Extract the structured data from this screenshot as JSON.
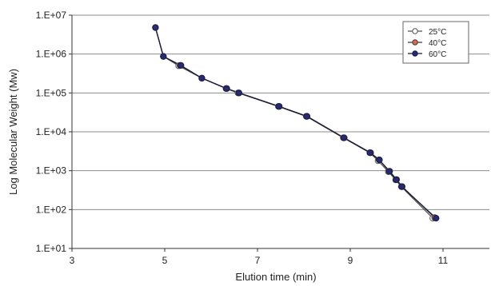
{
  "chart_data": {
    "type": "scatter",
    "title": "",
    "xlabel": "Elution time (min)",
    "ylabel": "Log Molecular Weight (Mw)",
    "x_scale": "linear",
    "y_scale": "log",
    "xlim": [
      3,
      12
    ],
    "ylim": [
      10,
      10000000
    ],
    "xticks": [
      3,
      5,
      7,
      9,
      11
    ],
    "xtick_labels": [
      "3",
      "5",
      "7",
      "9",
      "11"
    ],
    "yticks": [
      10,
      100,
      1000,
      10000,
      100000,
      1000000,
      10000000
    ],
    "ytick_labels": [
      "1.E+01",
      "1.E+02",
      "1.E+03",
      "1.E+04",
      "1.E+05",
      "1.E+06",
      "1.E+07"
    ],
    "grid": "horizontal",
    "legend_position": "top-right",
    "series": [
      {
        "name": "25°C",
        "marker": "open-circle",
        "color": "#555555",
        "fill": "#ffffff",
        "x": [
          4.8,
          4.97,
          5.3,
          5.8,
          6.32,
          6.58,
          7.45,
          8.05,
          8.85,
          9.42,
          9.6,
          9.82,
          9.98,
          10.1,
          10.78
        ],
        "y": [
          4800000,
          870000,
          500000,
          240000,
          130000,
          100000,
          45000,
          25000,
          7000,
          2900,
          1800,
          950,
          580,
          390,
          60
        ]
      },
      {
        "name": "40°C",
        "marker": "filled-circle",
        "color": "#3a3a3a",
        "fill": "#d96a4a",
        "x": [
          4.8,
          4.97,
          5.33,
          5.8,
          6.34,
          6.6,
          7.47,
          8.07,
          8.87,
          9.44,
          9.62,
          9.85,
          10.0,
          10.12,
          10.82
        ],
        "y": [
          4800000,
          870000,
          510000,
          240000,
          130000,
          100000,
          45000,
          25000,
          7000,
          2900,
          1900,
          970,
          590,
          390,
          62
        ]
      },
      {
        "name": "60°C",
        "marker": "filled-circle",
        "color": "#1a1a3a",
        "fill": "#262b73",
        "x": [
          4.8,
          4.97,
          5.35,
          5.8,
          6.33,
          6.6,
          7.46,
          8.06,
          8.86,
          9.43,
          9.63,
          9.84,
          9.99,
          10.11,
          10.85
        ],
        "y": [
          4800000,
          870000,
          510000,
          240000,
          130000,
          100000,
          45000,
          25000,
          7000,
          2900,
          1900,
          960,
          590,
          390,
          60
        ]
      }
    ]
  }
}
